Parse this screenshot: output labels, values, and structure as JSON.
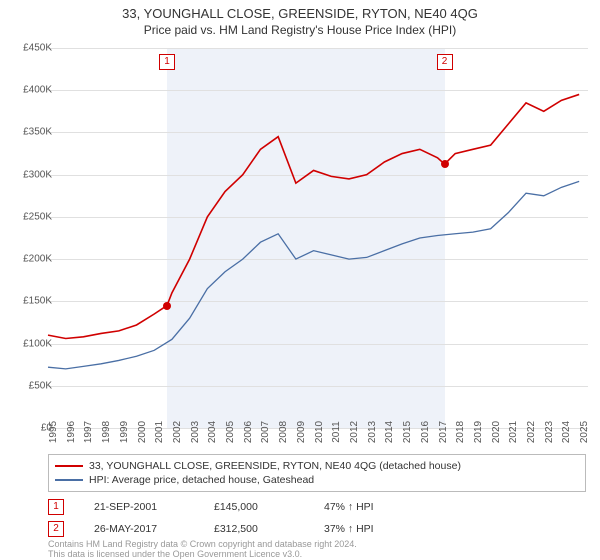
{
  "title": "33, YOUNGHALL CLOSE, GREENSIDE, RYTON, NE40 4QG",
  "subtitle": "Price paid vs. HM Land Registry's House Price Index (HPI)",
  "chart": {
    "type": "line",
    "background_color": "#ffffff",
    "grid_color": "#e0e0e0",
    "shade_color": "#eef2f9",
    "x_min": 1995,
    "x_max": 2025.5,
    "x_ticks": [
      1995,
      1996,
      1997,
      1998,
      1999,
      2000,
      2001,
      2002,
      2003,
      2004,
      2005,
      2006,
      2007,
      2008,
      2009,
      2010,
      2011,
      2012,
      2013,
      2014,
      2015,
      2016,
      2017,
      2018,
      2019,
      2020,
      2021,
      2022,
      2023,
      2024,
      2025
    ],
    "y_min": 0,
    "y_max": 450000,
    "y_tick_step": 50000,
    "y_tick_labels": [
      "£0",
      "£50K",
      "£100K",
      "£150K",
      "£200K",
      "£250K",
      "£300K",
      "£350K",
      "£400K",
      "£450K"
    ],
    "label_fontsize": 10,
    "series": [
      {
        "name": "33, YOUNGHALL CLOSE, GREENSIDE, RYTON, NE40 4QG (detached house)",
        "color": "#d00000",
        "line_width": 1.6,
        "data": [
          [
            1995,
            110000
          ],
          [
            1996,
            106000
          ],
          [
            1997,
            108000
          ],
          [
            1998,
            112000
          ],
          [
            1999,
            115000
          ],
          [
            2000,
            122000
          ],
          [
            2001,
            135000
          ],
          [
            2001.72,
            145000
          ],
          [
            2002,
            160000
          ],
          [
            2003,
            200000
          ],
          [
            2004,
            250000
          ],
          [
            2005,
            280000
          ],
          [
            2006,
            300000
          ],
          [
            2007,
            330000
          ],
          [
            2008,
            345000
          ],
          [
            2009,
            290000
          ],
          [
            2010,
            305000
          ],
          [
            2011,
            298000
          ],
          [
            2012,
            295000
          ],
          [
            2013,
            300000
          ],
          [
            2014,
            315000
          ],
          [
            2015,
            325000
          ],
          [
            2016,
            330000
          ],
          [
            2017,
            320000
          ],
          [
            2017.4,
            312500
          ],
          [
            2018,
            325000
          ],
          [
            2019,
            330000
          ],
          [
            2020,
            335000
          ],
          [
            2021,
            360000
          ],
          [
            2022,
            385000
          ],
          [
            2023,
            375000
          ],
          [
            2024,
            388000
          ],
          [
            2025,
            395000
          ]
        ]
      },
      {
        "name": "HPI: Average price, detached house, Gateshead",
        "color": "#4a6fa5",
        "line_width": 1.3,
        "data": [
          [
            1995,
            72000
          ],
          [
            1996,
            70000
          ],
          [
            1997,
            73000
          ],
          [
            1998,
            76000
          ],
          [
            1999,
            80000
          ],
          [
            2000,
            85000
          ],
          [
            2001,
            92000
          ],
          [
            2002,
            105000
          ],
          [
            2003,
            130000
          ],
          [
            2004,
            165000
          ],
          [
            2005,
            185000
          ],
          [
            2006,
            200000
          ],
          [
            2007,
            220000
          ],
          [
            2008,
            230000
          ],
          [
            2009,
            200000
          ],
          [
            2010,
            210000
          ],
          [
            2011,
            205000
          ],
          [
            2012,
            200000
          ],
          [
            2013,
            202000
          ],
          [
            2014,
            210000
          ],
          [
            2015,
            218000
          ],
          [
            2016,
            225000
          ],
          [
            2017,
            228000
          ],
          [
            2018,
            230000
          ],
          [
            2019,
            232000
          ],
          [
            2020,
            236000
          ],
          [
            2021,
            255000
          ],
          [
            2022,
            278000
          ],
          [
            2023,
            275000
          ],
          [
            2024,
            285000
          ],
          [
            2025,
            292000
          ]
        ]
      }
    ],
    "markers": [
      {
        "n": "1",
        "x": 2001.72,
        "y": 145000,
        "color": "#d00000"
      },
      {
        "n": "2",
        "x": 2017.4,
        "y": 312500,
        "color": "#d00000"
      }
    ],
    "shade_range": [
      2001.72,
      2017.4
    ]
  },
  "legend": {
    "items": [
      {
        "color": "#d00000",
        "label": "33, YOUNGHALL CLOSE, GREENSIDE, RYTON, NE40 4QG (detached house)"
      },
      {
        "color": "#4a6fa5",
        "label": "HPI: Average price, detached house, Gateshead"
      }
    ]
  },
  "transactions": [
    {
      "n": "1",
      "date": "21-SEP-2001",
      "price": "£145,000",
      "pct": "47% ↑ HPI"
    },
    {
      "n": "2",
      "date": "26-MAY-2017",
      "price": "£312,500",
      "pct": "37% ↑ HPI"
    }
  ],
  "footer": {
    "line1": "Contains HM Land Registry data © Crown copyright and database right 2024.",
    "line2": "This data is licensed under the Open Government Licence v3.0."
  }
}
